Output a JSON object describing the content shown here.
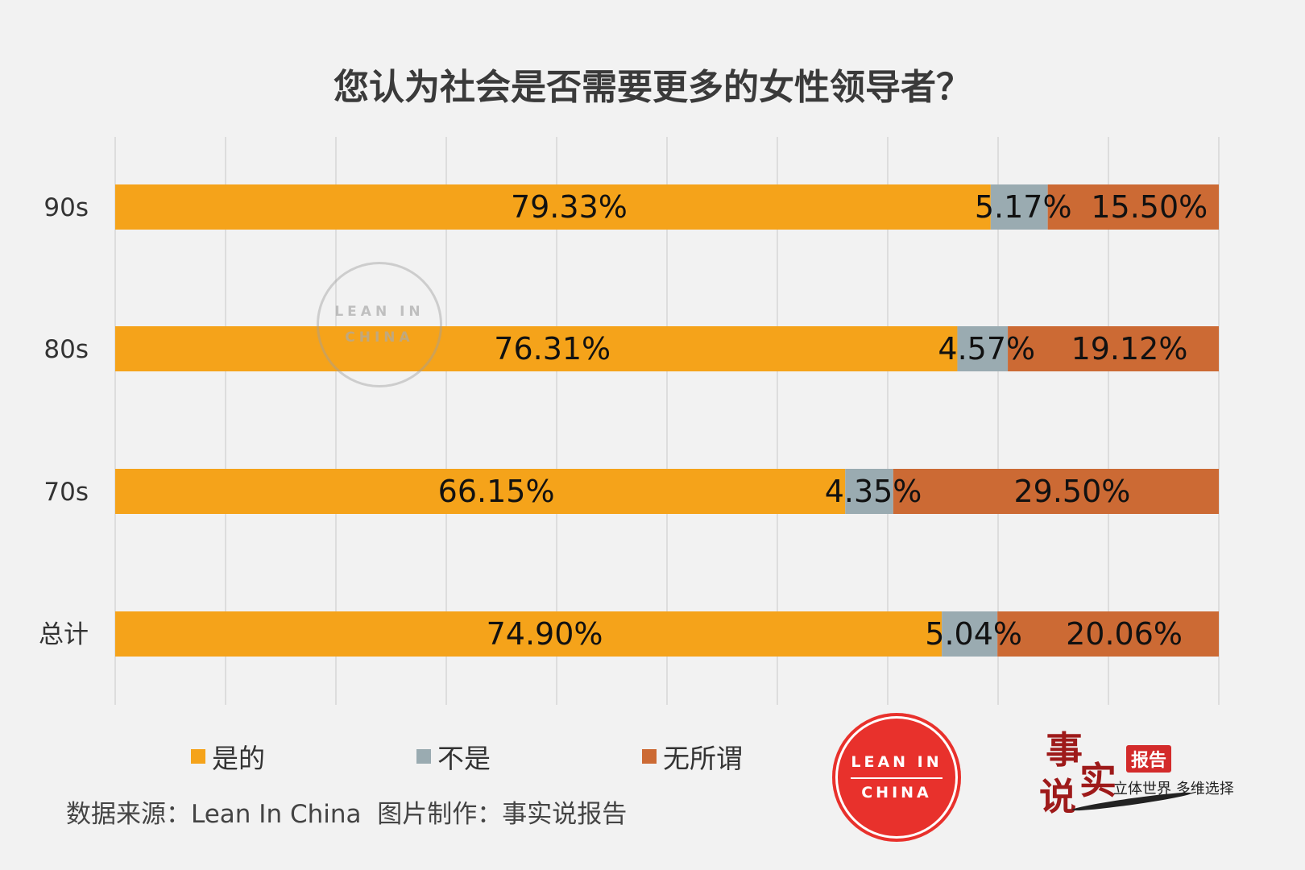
{
  "chart_data": {
    "type": "bar",
    "orientation": "horizontal",
    "stacked": true,
    "title": "您认为社会是否需要更多的女性领导者？",
    "categories": [
      "90s",
      "80s",
      "70s",
      "总计"
    ],
    "series": [
      {
        "name": "是的",
        "color": "#f5a31a",
        "values": [
          79.33,
          76.31,
          66.15,
          74.9
        ],
        "labels": [
          "79.33%",
          "76.31%",
          "66.15%",
          "74.90%"
        ]
      },
      {
        "name": "不是",
        "color": "#9aabb1",
        "values": [
          5.17,
          4.57,
          4.35,
          5.04
        ],
        "labels": [
          "5.17%",
          "4.57%",
          "4.35%",
          "5.04%"
        ]
      },
      {
        "name": "无所谓",
        "color": "#cc6a34",
        "values": [
          15.5,
          19.12,
          29.5,
          20.06
        ],
        "labels": [
          "15.50%",
          "19.12%",
          "29.50%",
          "20.06%"
        ]
      }
    ],
    "xlim": [
      0,
      100
    ],
    "grid": true,
    "legend_position": "bottom-left"
  },
  "footer": {
    "source": "数据来源：Lean In China  图片制作：事实说报告"
  },
  "logos": {
    "lean_in_line1": "LEAN IN",
    "lean_in_line2": "CHINA",
    "brand_char1": "事",
    "brand_char2": "实",
    "brand_char3": "说",
    "brand_tag": "报告",
    "brand_slogan": "立体世界 多维选择"
  }
}
